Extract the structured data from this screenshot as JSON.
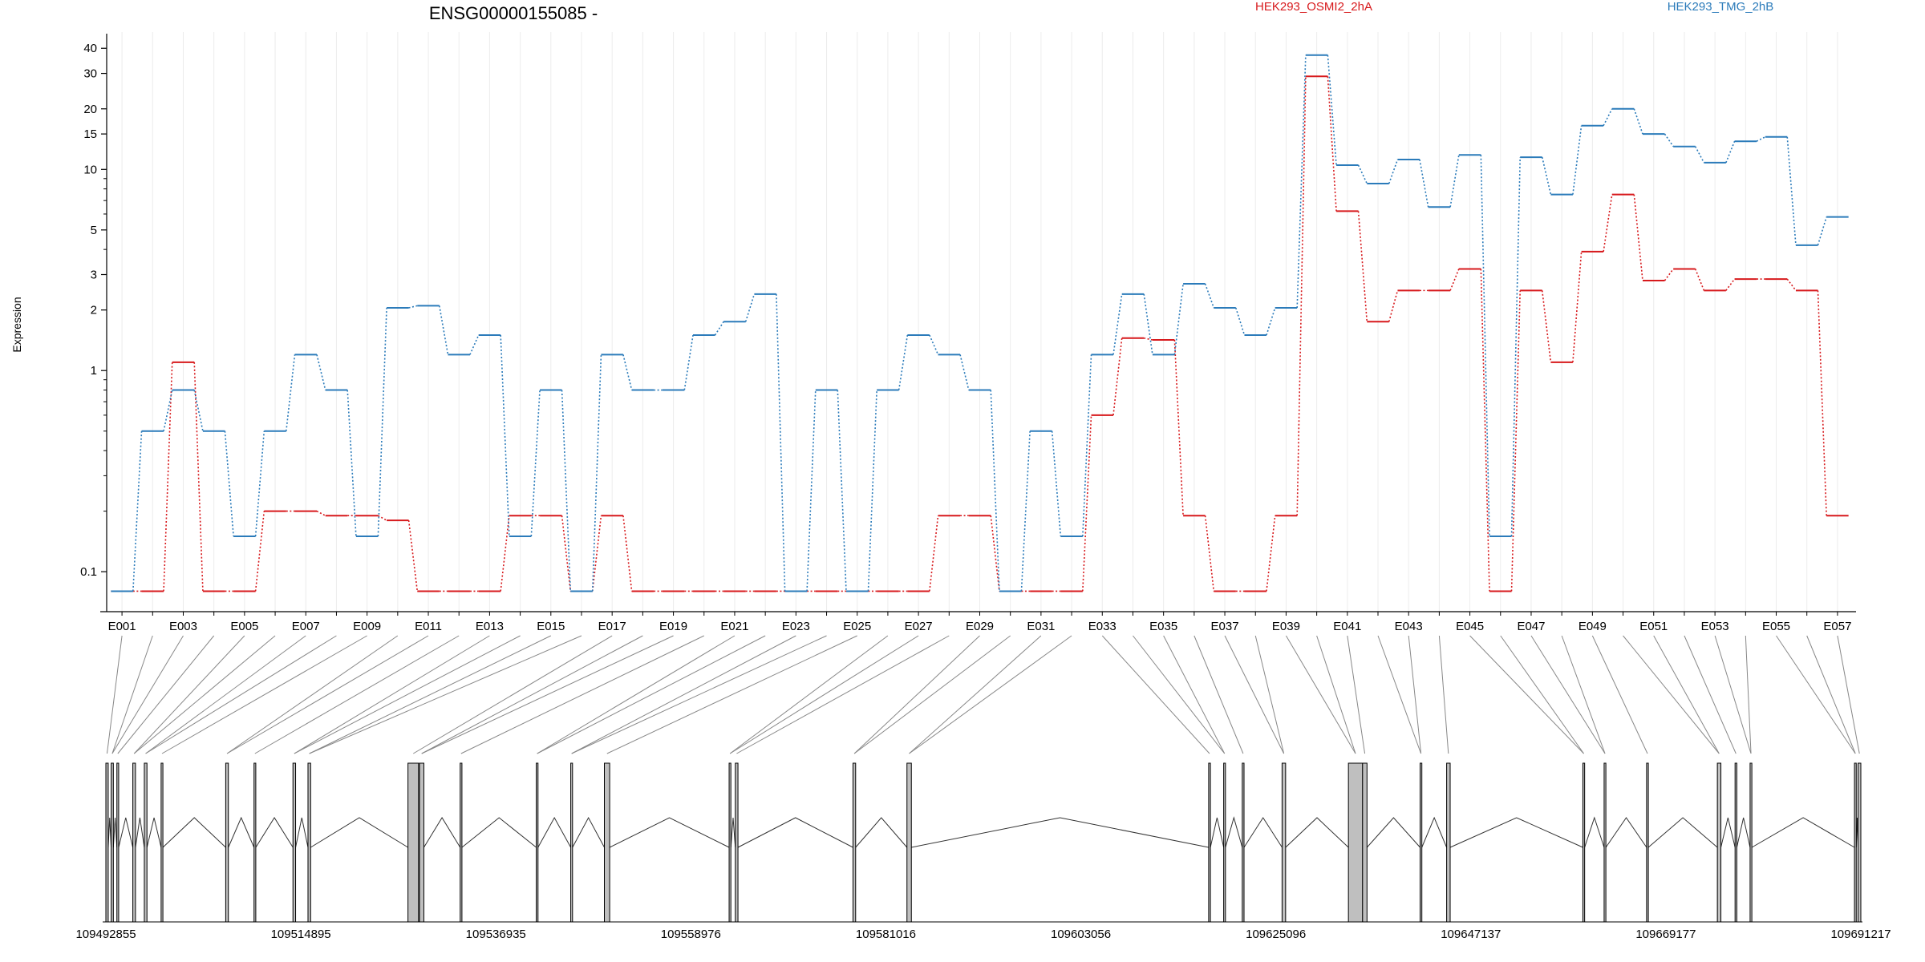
{
  "chart_data": {
    "type": "line",
    "title": "ENSG00000155085 -",
    "ylabel": "Expression",
    "y_scale": "log",
    "ylim": [
      0.07,
      46
    ],
    "y_ticks": [
      {
        "v": 0.1,
        "label": "0.1"
      },
      {
        "v": 1,
        "label": "1"
      },
      {
        "v": 2,
        "label": "2"
      },
      {
        "v": 3,
        "label": "3"
      },
      {
        "v": 5,
        "label": "5"
      },
      {
        "v": 10,
        "label": "10"
      },
      {
        "v": 15,
        "label": "15"
      },
      {
        "v": 20,
        "label": "20"
      },
      {
        "v": 30,
        "label": "30"
      },
      {
        "v": 40,
        "label": "40"
      }
    ],
    "y_minor_ticks": [
      0.2,
      0.3,
      0.4,
      0.5,
      0.6,
      0.7,
      0.8,
      0.9,
      4,
      6,
      7,
      8,
      9
    ],
    "categories": [
      "E001",
      "E002",
      "E003",
      "E004",
      "E005",
      "E006",
      "E007",
      "E008",
      "E009",
      "E010",
      "E011",
      "E012",
      "E013",
      "E014",
      "E015",
      "E016",
      "E017",
      "E018",
      "E019",
      "E020",
      "E021",
      "E022",
      "E023",
      "E024",
      "E025",
      "E026",
      "E027",
      "E028",
      "E029",
      "E030",
      "E031",
      "E032",
      "E033",
      "E034",
      "E035",
      "E036",
      "E037",
      "E038",
      "E039",
      "E040",
      "E041",
      "E042",
      "E043",
      "E044",
      "E045",
      "E046",
      "E047",
      "E048",
      "E049",
      "E050",
      "E051",
      "E052",
      "E053",
      "E054",
      "E055",
      "E056",
      "E057"
    ],
    "x_tick_labels": [
      "E001",
      "E003",
      "E005",
      "E007",
      "E009",
      "E011",
      "E013",
      "E015",
      "E017",
      "E019",
      "E021",
      "E023",
      "E025",
      "E027",
      "E029",
      "E031",
      "E033",
      "E035",
      "E037",
      "E039",
      "E041",
      "E043",
      "E045",
      "E047",
      "E049",
      "E051",
      "E053",
      "E055",
      "E057"
    ],
    "series": [
      {
        "name": "HEK293_OSMI2_2hA",
        "color": "#d7191c",
        "values": [
          0.08,
          0.08,
          1.1,
          0.08,
          0.08,
          0.2,
          0.2,
          0.19,
          0.19,
          0.18,
          0.08,
          0.08,
          0.08,
          0.19,
          0.19,
          0.08,
          0.19,
          0.08,
          0.08,
          0.08,
          0.08,
          0.08,
          0.08,
          0.08,
          0.08,
          0.08,
          0.08,
          0.19,
          0.19,
          0.08,
          0.08,
          0.08,
          0.6,
          1.45,
          1.42,
          0.19,
          0.08,
          0.08,
          0.19,
          29,
          6.2,
          1.75,
          2.5,
          2.5,
          3.2,
          0.08,
          2.5,
          1.1,
          3.9,
          7.5,
          2.8,
          3.2,
          2.5,
          2.85,
          2.85,
          2.5,
          0.19
        ]
      },
      {
        "name": "HEK293_TMG_2hB",
        "color": "#2b7bba",
        "values": [
          0.08,
          0.5,
          0.8,
          0.5,
          0.15,
          0.5,
          1.2,
          0.8,
          0.15,
          2.05,
          2.1,
          1.2,
          1.5,
          0.15,
          0.8,
          0.08,
          1.2,
          0.8,
          0.8,
          1.5,
          1.75,
          2.4,
          0.08,
          0.8,
          0.08,
          0.8,
          1.5,
          1.2,
          0.8,
          0.08,
          0.5,
          0.15,
          1.2,
          2.4,
          1.2,
          2.7,
          2.05,
          1.5,
          2.05,
          37,
          10.5,
          8.5,
          11.2,
          6.5,
          11.8,
          0.15,
          11.5,
          7.5,
          16.5,
          20,
          15,
          13,
          10.8,
          13.8,
          14.5,
          4.2,
          5.8
        ]
      }
    ],
    "coordinates": {
      "tick_labels": [
        "109492855",
        "109514895",
        "109536935",
        "109558976",
        "109581016",
        "109603056",
        "109625096",
        "109647137",
        "109669177",
        "109691217"
      ],
      "range": [
        109492855,
        109691217
      ],
      "exons": [
        [
          109492855,
          109493120
        ],
        [
          109493450,
          109493700
        ],
        [
          109494100,
          109494300
        ],
        [
          109495900,
          109496200
        ],
        [
          109497200,
          109497500
        ],
        [
          109499100,
          109499300
        ],
        [
          109506400,
          109506700
        ],
        [
          109509600,
          109509800
        ],
        [
          109514000,
          109514300
        ],
        [
          109515700,
          109516000
        ],
        [
          109527000,
          109528200
        ],
        [
          109528300,
          109528800
        ],
        [
          109532900,
          109533100
        ],
        [
          109541500,
          109541700
        ],
        [
          109545400,
          109545600
        ],
        [
          109549200,
          109549800
        ],
        [
          109563300,
          109563500
        ],
        [
          109564000,
          109564300
        ],
        [
          109577300,
          109577600
        ],
        [
          109583400,
          109583900
        ],
        [
          109617500,
          109617700
        ],
        [
          109619200,
          109619400
        ],
        [
          109621300,
          109621500
        ],
        [
          109625800,
          109626200
        ],
        [
          109633300,
          109634900
        ],
        [
          109634900,
          109635400
        ],
        [
          109641400,
          109641600
        ],
        [
          109644400,
          109644800
        ],
        [
          109659800,
          109660000
        ],
        [
          109662200,
          109662400
        ],
        [
          109667000,
          109667200
        ],
        [
          109675000,
          109675400
        ],
        [
          109677000,
          109677200
        ],
        [
          109678700,
          109678900
        ],
        [
          109690500,
          109690700
        ],
        [
          109690900,
          109691217
        ]
      ],
      "highlight_exon": 40,
      "highlight_color": "#ff1aff"
    }
  },
  "legend": [
    {
      "label": "HEK293_OSMI2_2hA",
      "color": "#d7191c"
    },
    {
      "label": "HEK293_TMG_2hB",
      "color": "#2b7bba"
    }
  ]
}
